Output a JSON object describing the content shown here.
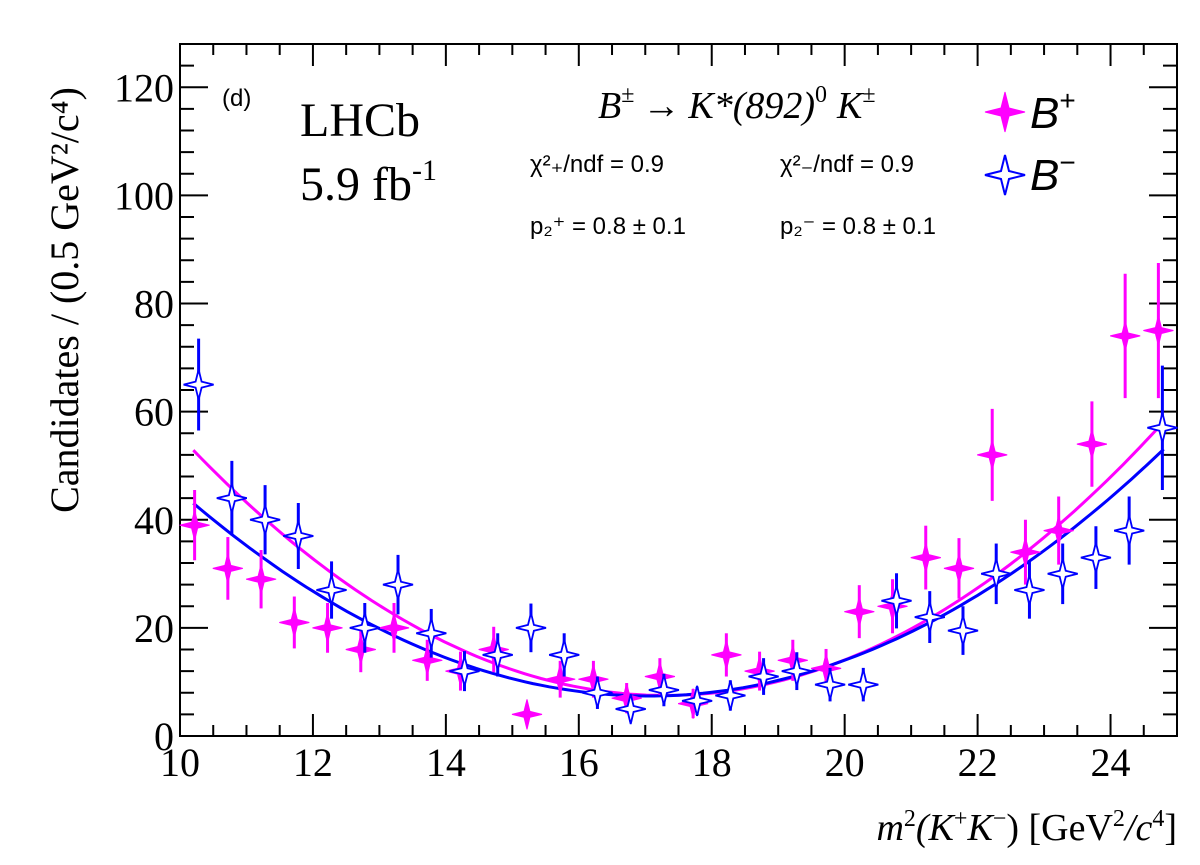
{
  "chart_data": {
    "type": "scatter",
    "panel_label": "(d)",
    "experiment": "LHCb",
    "luminosity": "5.9 fb-1",
    "luminosity_value": "5.9 fb",
    "luminosity_exp": "-1",
    "decay": {
      "B": "B",
      "pm": "±",
      "arrow": "→",
      "Kstar": "K*(892)",
      "zero": "0",
      "K": "K"
    },
    "xlabel": {
      "m": "m",
      "sq": "2",
      "open": "(K",
      "plus": "+",
      "K2": "K",
      "minus": "−",
      "close": ") [GeV",
      "sq2": "2",
      "slash": "/c",
      "four": "4",
      "end": "]"
    },
    "ylabel": "Candidates / (0.5 GeV²/c⁴)",
    "xlim": [
      10,
      25
    ],
    "ylim": [
      0,
      128
    ],
    "x_ticks": [
      10,
      12,
      14,
      16,
      18,
      20,
      22,
      24
    ],
    "y_ticks": [
      0,
      20,
      40,
      60,
      80,
      100,
      120
    ],
    "stats": {
      "plus_chi": "χ²₊/ndf = 0.9",
      "minus_chi": "χ²₋/ndf = 0.9",
      "plus_p": "p₂⁺ = 0.8 ± 0.1",
      "minus_p": "p₂⁻ = 0.8 ± 0.1"
    },
    "legend": [
      {
        "name": "B+",
        "base": "B",
        "sup": "+",
        "color": "#ff00ff",
        "marker": "filled-star"
      },
      {
        "name": "B−",
        "base": "B",
        "sup": "−",
        "color": "#0000ff",
        "marker": "open-star"
      }
    ],
    "series": [
      {
        "name": "B+",
        "color": "#ff00ff",
        "x": [
          10.25,
          10.75,
          11.25,
          11.75,
          12.25,
          12.75,
          13.25,
          13.75,
          14.25,
          14.75,
          15.25,
          15.75,
          16.25,
          16.75,
          17.25,
          17.75,
          18.25,
          18.75,
          19.25,
          19.75,
          20.25,
          20.75,
          21.25,
          21.75,
          22.25,
          22.75,
          23.25,
          23.75,
          24.25,
          24.75
        ],
        "y": [
          39,
          31,
          29,
          21,
          20,
          16,
          20,
          14,
          12,
          16,
          4,
          10.5,
          10.5,
          7,
          11,
          6,
          15,
          12,
          14,
          12.5,
          23,
          24,
          33,
          31,
          52,
          34,
          38,
          54,
          74,
          75
        ],
        "err": [
          6.5,
          5.8,
          5.4,
          4.8,
          4.6,
          4.2,
          4.6,
          3.8,
          3.6,
          4.2,
          2.0,
          3.4,
          3.4,
          2.8,
          3.4,
          2.7,
          4.0,
          3.6,
          3.8,
          3.6,
          4.9,
          5.0,
          5.9,
          5.6,
          8.5,
          6.0,
          6.3,
          7.9,
          11.5,
          12.5
        ]
      },
      {
        "name": "B−",
        "color": "#0000ff",
        "x": [
          10.25,
          10.75,
          11.25,
          11.75,
          12.25,
          12.75,
          13.25,
          13.75,
          14.25,
          14.75,
          15.25,
          15.75,
          16.25,
          16.75,
          17.25,
          17.75,
          18.25,
          18.75,
          19.25,
          19.75,
          20.25,
          20.75,
          21.25,
          21.75,
          22.25,
          22.75,
          23.25,
          23.75,
          24.25,
          24.75
        ],
        "y": [
          65,
          44,
          40,
          37,
          27,
          20,
          28,
          19,
          12,
          15,
          20,
          15,
          8,
          5,
          8.5,
          6.5,
          7.5,
          11,
          12,
          9.5,
          9.5,
          25,
          22,
          19.5,
          30,
          27,
          30,
          33,
          38,
          57
        ],
        "err": [
          8.5,
          6.9,
          6.4,
          6.1,
          5.3,
          4.6,
          5.5,
          4.5,
          3.7,
          4.0,
          4.5,
          4.0,
          3.0,
          2.3,
          3.0,
          2.6,
          2.8,
          3.4,
          3.5,
          3.1,
          3.1,
          5.1,
          4.8,
          4.5,
          5.6,
          5.3,
          5.6,
          5.8,
          6.3,
          11.5
        ]
      }
    ],
    "fits": [
      {
        "name": "B+ fit",
        "color": "#ff00ff",
        "form": "a*(x-x0)^2+c",
        "a": 0.9,
        "x0": 17.3,
        "c": 7.5
      },
      {
        "name": "B− fit",
        "color": "#0000ff",
        "form": "a*(x-x0)^2+c",
        "a": 0.76,
        "x0": 17.05,
        "c": 7.4
      }
    ]
  }
}
